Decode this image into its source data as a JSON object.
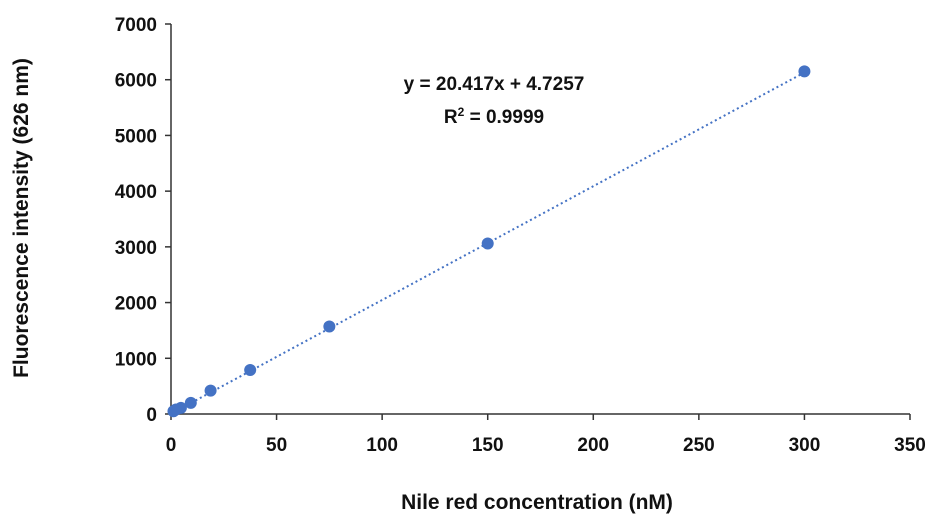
{
  "chart_data": {
    "type": "scatter",
    "title": "",
    "xlabel": "Nile red concentration  (nM)",
    "ylabel": "Fluorescence intensity (626 nm)",
    "xlim": [
      0,
      350
    ],
    "ylim": [
      0,
      7000
    ],
    "x_ticks": [
      "0",
      "50",
      "100",
      "150",
      "200",
      "250",
      "300",
      "350"
    ],
    "y_ticks": [
      "0",
      "1000",
      "2000",
      "3000",
      "4000",
      "5000",
      "6000",
      "7000"
    ],
    "grid": false,
    "legend": "none",
    "series": [
      {
        "marker_color": "#4472C4",
        "points": [
          {
            "x": 1.17,
            "y": 50
          },
          {
            "x": 2.34,
            "y": 80
          },
          {
            "x": 4.69,
            "y": 110
          },
          {
            "x": 9.38,
            "y": 200
          },
          {
            "x": 18.75,
            "y": 420
          },
          {
            "x": 37.5,
            "y": 790
          },
          {
            "x": 75,
            "y": 1570
          },
          {
            "x": 150,
            "y": 3060
          },
          {
            "x": 300,
            "y": 6150
          }
        ]
      }
    ],
    "trendline": {
      "type": "linear",
      "slope": 20.417,
      "intercept": 4.7257,
      "style": "dotted",
      "color": "#4472C4"
    },
    "annotations": {
      "equation": "y = 20.417x + 4.7257",
      "r2_label": "R",
      "r2_superscript": "2",
      "r2_value": " = 0.9999"
    }
  }
}
